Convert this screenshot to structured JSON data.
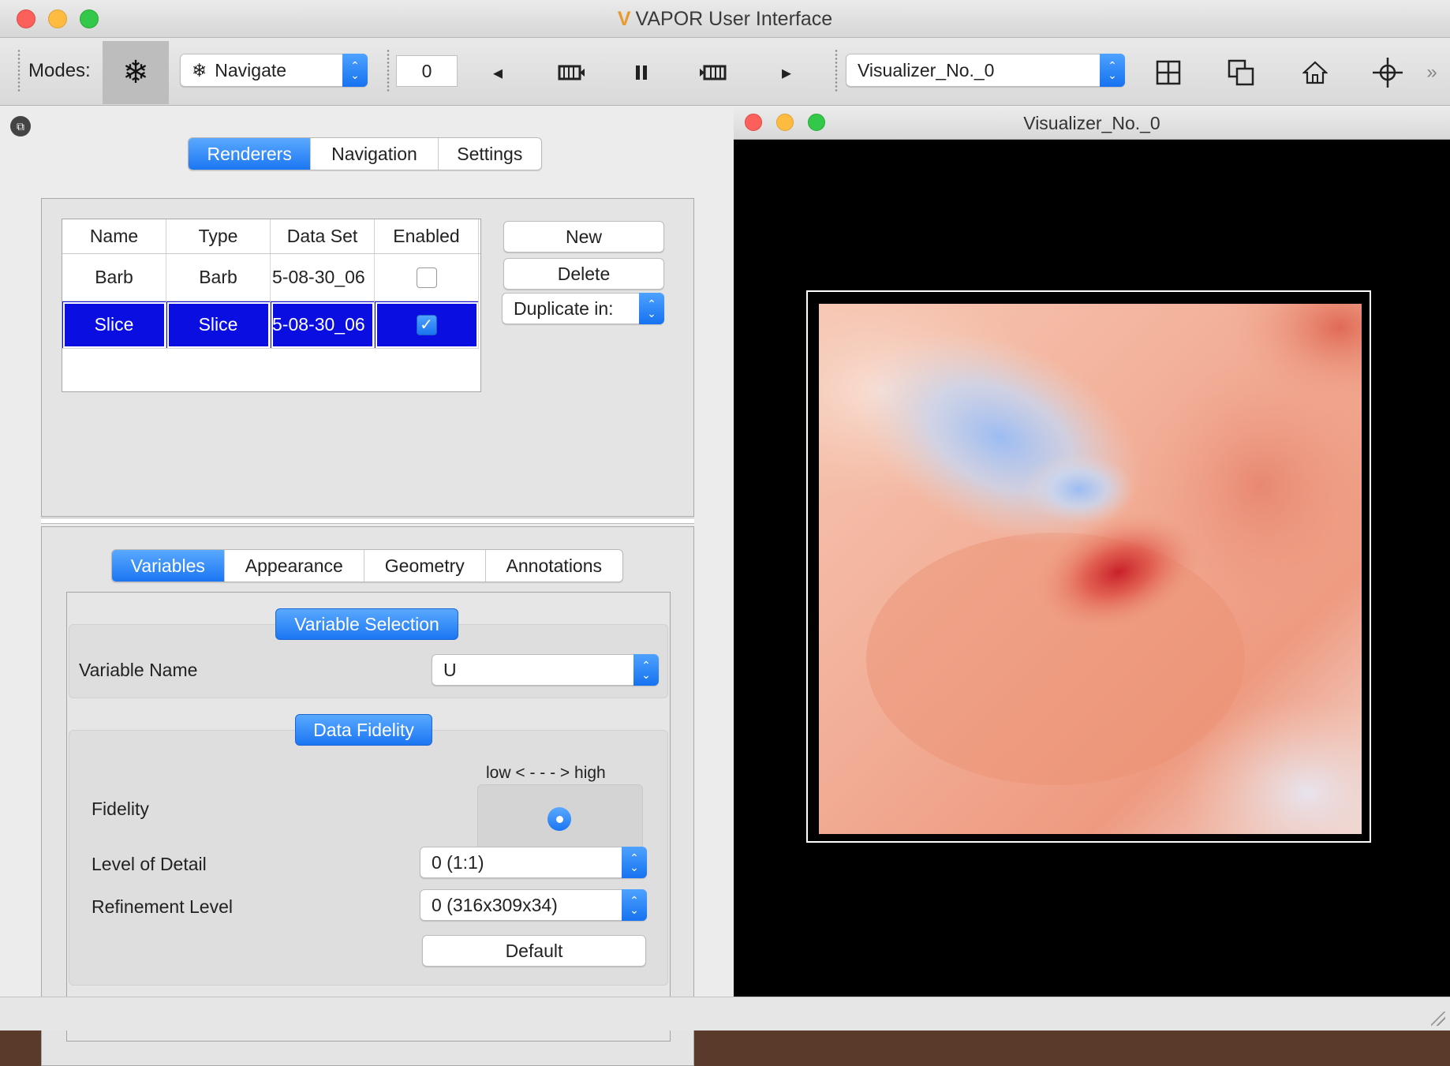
{
  "window": {
    "title": "VAPOR User Interface"
  },
  "toolbar": {
    "modes_label": "Modes:",
    "mode_select": "Navigate",
    "timestep": "0",
    "visualizer_select": "Visualizer_No._0",
    "more": "»"
  },
  "tabs": {
    "top": [
      "Renderers",
      "Navigation",
      "Settings"
    ]
  },
  "renderers_table": {
    "headers": [
      "Name",
      "Type",
      "Data Set",
      "Enabled"
    ],
    "rows": [
      {
        "name": "Barb",
        "type": "Barb",
        "dataset": "5-08-30_06",
        "enabled": false
      },
      {
        "name": "Slice",
        "type": "Slice",
        "dataset": "5-08-30_06",
        "enabled": true
      }
    ]
  },
  "buttons": {
    "new": "New",
    "delete": "Delete",
    "duplicate": "Duplicate in:"
  },
  "subtabs": [
    "Variables",
    "Appearance",
    "Geometry",
    "Annotations"
  ],
  "variable_selection": {
    "title": "Variable Selection",
    "variable_name_label": "Variable Name",
    "variable_name_value": "U"
  },
  "data_fidelity": {
    "title": "Data Fidelity",
    "scale_label": "low < - - - > high",
    "fidelity_label": "Fidelity",
    "lod_label": "Level of Detail",
    "lod_value": "0 (1:1)",
    "refinement_label": "Refinement Level",
    "refinement_value": "0 (316x309x34)",
    "default_button": "Default"
  },
  "visualizer": {
    "title": "Visualizer_No._0"
  },
  "colors": {
    "accent": "#1b76f2",
    "selection": "#0a0ee0"
  }
}
